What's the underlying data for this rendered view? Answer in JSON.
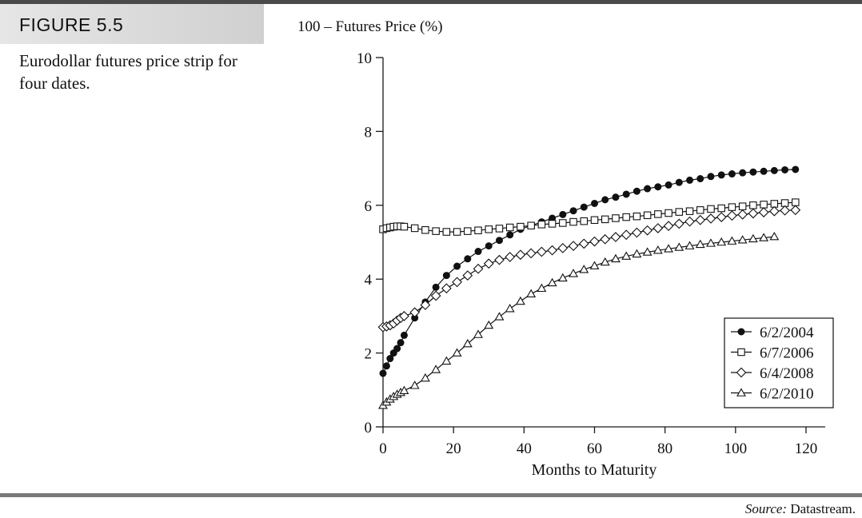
{
  "figure": {
    "label": "FIGURE 5.5",
    "caption": "Eurodollar futures price strip for four dates."
  },
  "source": {
    "key": "Source:",
    "value": "Datastream."
  },
  "chart_data": {
    "type": "line",
    "ylabel": "100 – Futures Price (%)",
    "xlabel": "Months to Maturity",
    "xlim": [
      0,
      120
    ],
    "ylim": [
      0,
      10
    ],
    "xticks": [
      "0",
      "20",
      "40",
      "60",
      "80",
      "100",
      "120"
    ],
    "yticks": [
      "0",
      "2",
      "4",
      "6",
      "8",
      "10"
    ],
    "grid": false,
    "legend_position": "bottom-right",
    "series": [
      {
        "name": "6/2/2004",
        "marker": "filled-circle",
        "points": [
          [
            0,
            1.45
          ],
          [
            1,
            1.65
          ],
          [
            2,
            1.85
          ],
          [
            3,
            2.0
          ],
          [
            4,
            2.12
          ],
          [
            5,
            2.28
          ],
          [
            6,
            2.48
          ],
          [
            9,
            2.95
          ],
          [
            12,
            3.38
          ],
          [
            15,
            3.78
          ],
          [
            18,
            4.1
          ],
          [
            21,
            4.35
          ],
          [
            24,
            4.55
          ],
          [
            27,
            4.75
          ],
          [
            30,
            4.9
          ],
          [
            33,
            5.05
          ],
          [
            36,
            5.2
          ],
          [
            39,
            5.35
          ],
          [
            42,
            5.45
          ],
          [
            45,
            5.55
          ],
          [
            48,
            5.65
          ],
          [
            51,
            5.75
          ],
          [
            54,
            5.85
          ],
          [
            57,
            5.95
          ],
          [
            60,
            6.05
          ],
          [
            63,
            6.15
          ],
          [
            66,
            6.22
          ],
          [
            69,
            6.3
          ],
          [
            72,
            6.38
          ],
          [
            75,
            6.45
          ],
          [
            78,
            6.5
          ],
          [
            81,
            6.55
          ],
          [
            84,
            6.62
          ],
          [
            87,
            6.68
          ],
          [
            90,
            6.72
          ],
          [
            93,
            6.78
          ],
          [
            96,
            6.82
          ],
          [
            99,
            6.85
          ],
          [
            102,
            6.88
          ],
          [
            105,
            6.9
          ],
          [
            108,
            6.92
          ],
          [
            111,
            6.94
          ],
          [
            114,
            6.96
          ],
          [
            117,
            6.97
          ]
        ]
      },
      {
        "name": "6/7/2006",
        "marker": "open-square",
        "points": [
          [
            0,
            5.35
          ],
          [
            1,
            5.38
          ],
          [
            2,
            5.4
          ],
          [
            3,
            5.42
          ],
          [
            4,
            5.43
          ],
          [
            5,
            5.43
          ],
          [
            6,
            5.42
          ],
          [
            9,
            5.38
          ],
          [
            12,
            5.33
          ],
          [
            15,
            5.3
          ],
          [
            18,
            5.28
          ],
          [
            21,
            5.28
          ],
          [
            24,
            5.3
          ],
          [
            27,
            5.32
          ],
          [
            30,
            5.35
          ],
          [
            33,
            5.37
          ],
          [
            36,
            5.4
          ],
          [
            39,
            5.42
          ],
          [
            42,
            5.45
          ],
          [
            45,
            5.48
          ],
          [
            48,
            5.5
          ],
          [
            51,
            5.52
          ],
          [
            54,
            5.55
          ],
          [
            57,
            5.57
          ],
          [
            60,
            5.6
          ],
          [
            63,
            5.62
          ],
          [
            66,
            5.65
          ],
          [
            69,
            5.68
          ],
          [
            72,
            5.7
          ],
          [
            75,
            5.73
          ],
          [
            78,
            5.76
          ],
          [
            81,
            5.79
          ],
          [
            84,
            5.82
          ],
          [
            87,
            5.84
          ],
          [
            90,
            5.87
          ],
          [
            93,
            5.9
          ],
          [
            96,
            5.92
          ],
          [
            99,
            5.95
          ],
          [
            102,
            5.97
          ],
          [
            105,
            6.0
          ],
          [
            108,
            6.02
          ],
          [
            111,
            6.04
          ],
          [
            114,
            6.06
          ],
          [
            117,
            6.08
          ]
        ]
      },
      {
        "name": "6/4/2008",
        "marker": "open-diamond",
        "points": [
          [
            0,
            2.7
          ],
          [
            1,
            2.72
          ],
          [
            2,
            2.75
          ],
          [
            3,
            2.8
          ],
          [
            4,
            2.88
          ],
          [
            5,
            2.95
          ],
          [
            6,
            3.0
          ],
          [
            9,
            3.1
          ],
          [
            12,
            3.3
          ],
          [
            15,
            3.55
          ],
          [
            18,
            3.75
          ],
          [
            21,
            3.92
          ],
          [
            24,
            4.1
          ],
          [
            27,
            4.28
          ],
          [
            30,
            4.42
          ],
          [
            33,
            4.52
          ],
          [
            36,
            4.6
          ],
          [
            39,
            4.66
          ],
          [
            42,
            4.7
          ],
          [
            45,
            4.74
          ],
          [
            48,
            4.78
          ],
          [
            51,
            4.84
          ],
          [
            54,
            4.9
          ],
          [
            57,
            4.96
          ],
          [
            60,
            5.02
          ],
          [
            63,
            5.08
          ],
          [
            66,
            5.14
          ],
          [
            69,
            5.2
          ],
          [
            72,
            5.26
          ],
          [
            75,
            5.32
          ],
          [
            78,
            5.38
          ],
          [
            81,
            5.44
          ],
          [
            84,
            5.5
          ],
          [
            87,
            5.56
          ],
          [
            90,
            5.6
          ],
          [
            93,
            5.64
          ],
          [
            96,
            5.68
          ],
          [
            99,
            5.72
          ],
          [
            102,
            5.75
          ],
          [
            105,
            5.78
          ],
          [
            108,
            5.81
          ],
          [
            111,
            5.84
          ],
          [
            114,
            5.86
          ],
          [
            117,
            5.87
          ]
        ]
      },
      {
        "name": "6/2/2010",
        "marker": "open-triangle",
        "points": [
          [
            0,
            0.58
          ],
          [
            1,
            0.67
          ],
          [
            2,
            0.75
          ],
          [
            3,
            0.82
          ],
          [
            4,
            0.88
          ],
          [
            5,
            0.93
          ],
          [
            6,
            0.98
          ],
          [
            9,
            1.12
          ],
          [
            12,
            1.32
          ],
          [
            15,
            1.55
          ],
          [
            18,
            1.78
          ],
          [
            21,
            2.0
          ],
          [
            24,
            2.25
          ],
          [
            27,
            2.5
          ],
          [
            30,
            2.75
          ],
          [
            33,
            2.98
          ],
          [
            36,
            3.2
          ],
          [
            39,
            3.4
          ],
          [
            42,
            3.6
          ],
          [
            45,
            3.75
          ],
          [
            48,
            3.9
          ],
          [
            51,
            4.03
          ],
          [
            54,
            4.15
          ],
          [
            57,
            4.26
          ],
          [
            60,
            4.36
          ],
          [
            63,
            4.46
          ],
          [
            66,
            4.55
          ],
          [
            69,
            4.62
          ],
          [
            72,
            4.68
          ],
          [
            75,
            4.73
          ],
          [
            78,
            4.78
          ],
          [
            81,
            4.82
          ],
          [
            84,
            4.86
          ],
          [
            87,
            4.9
          ],
          [
            90,
            4.94
          ],
          [
            93,
            4.97
          ],
          [
            96,
            5.0
          ],
          [
            99,
            5.03
          ],
          [
            102,
            5.06
          ],
          [
            105,
            5.09
          ],
          [
            108,
            5.12
          ],
          [
            111,
            5.15
          ]
        ]
      }
    ]
  }
}
